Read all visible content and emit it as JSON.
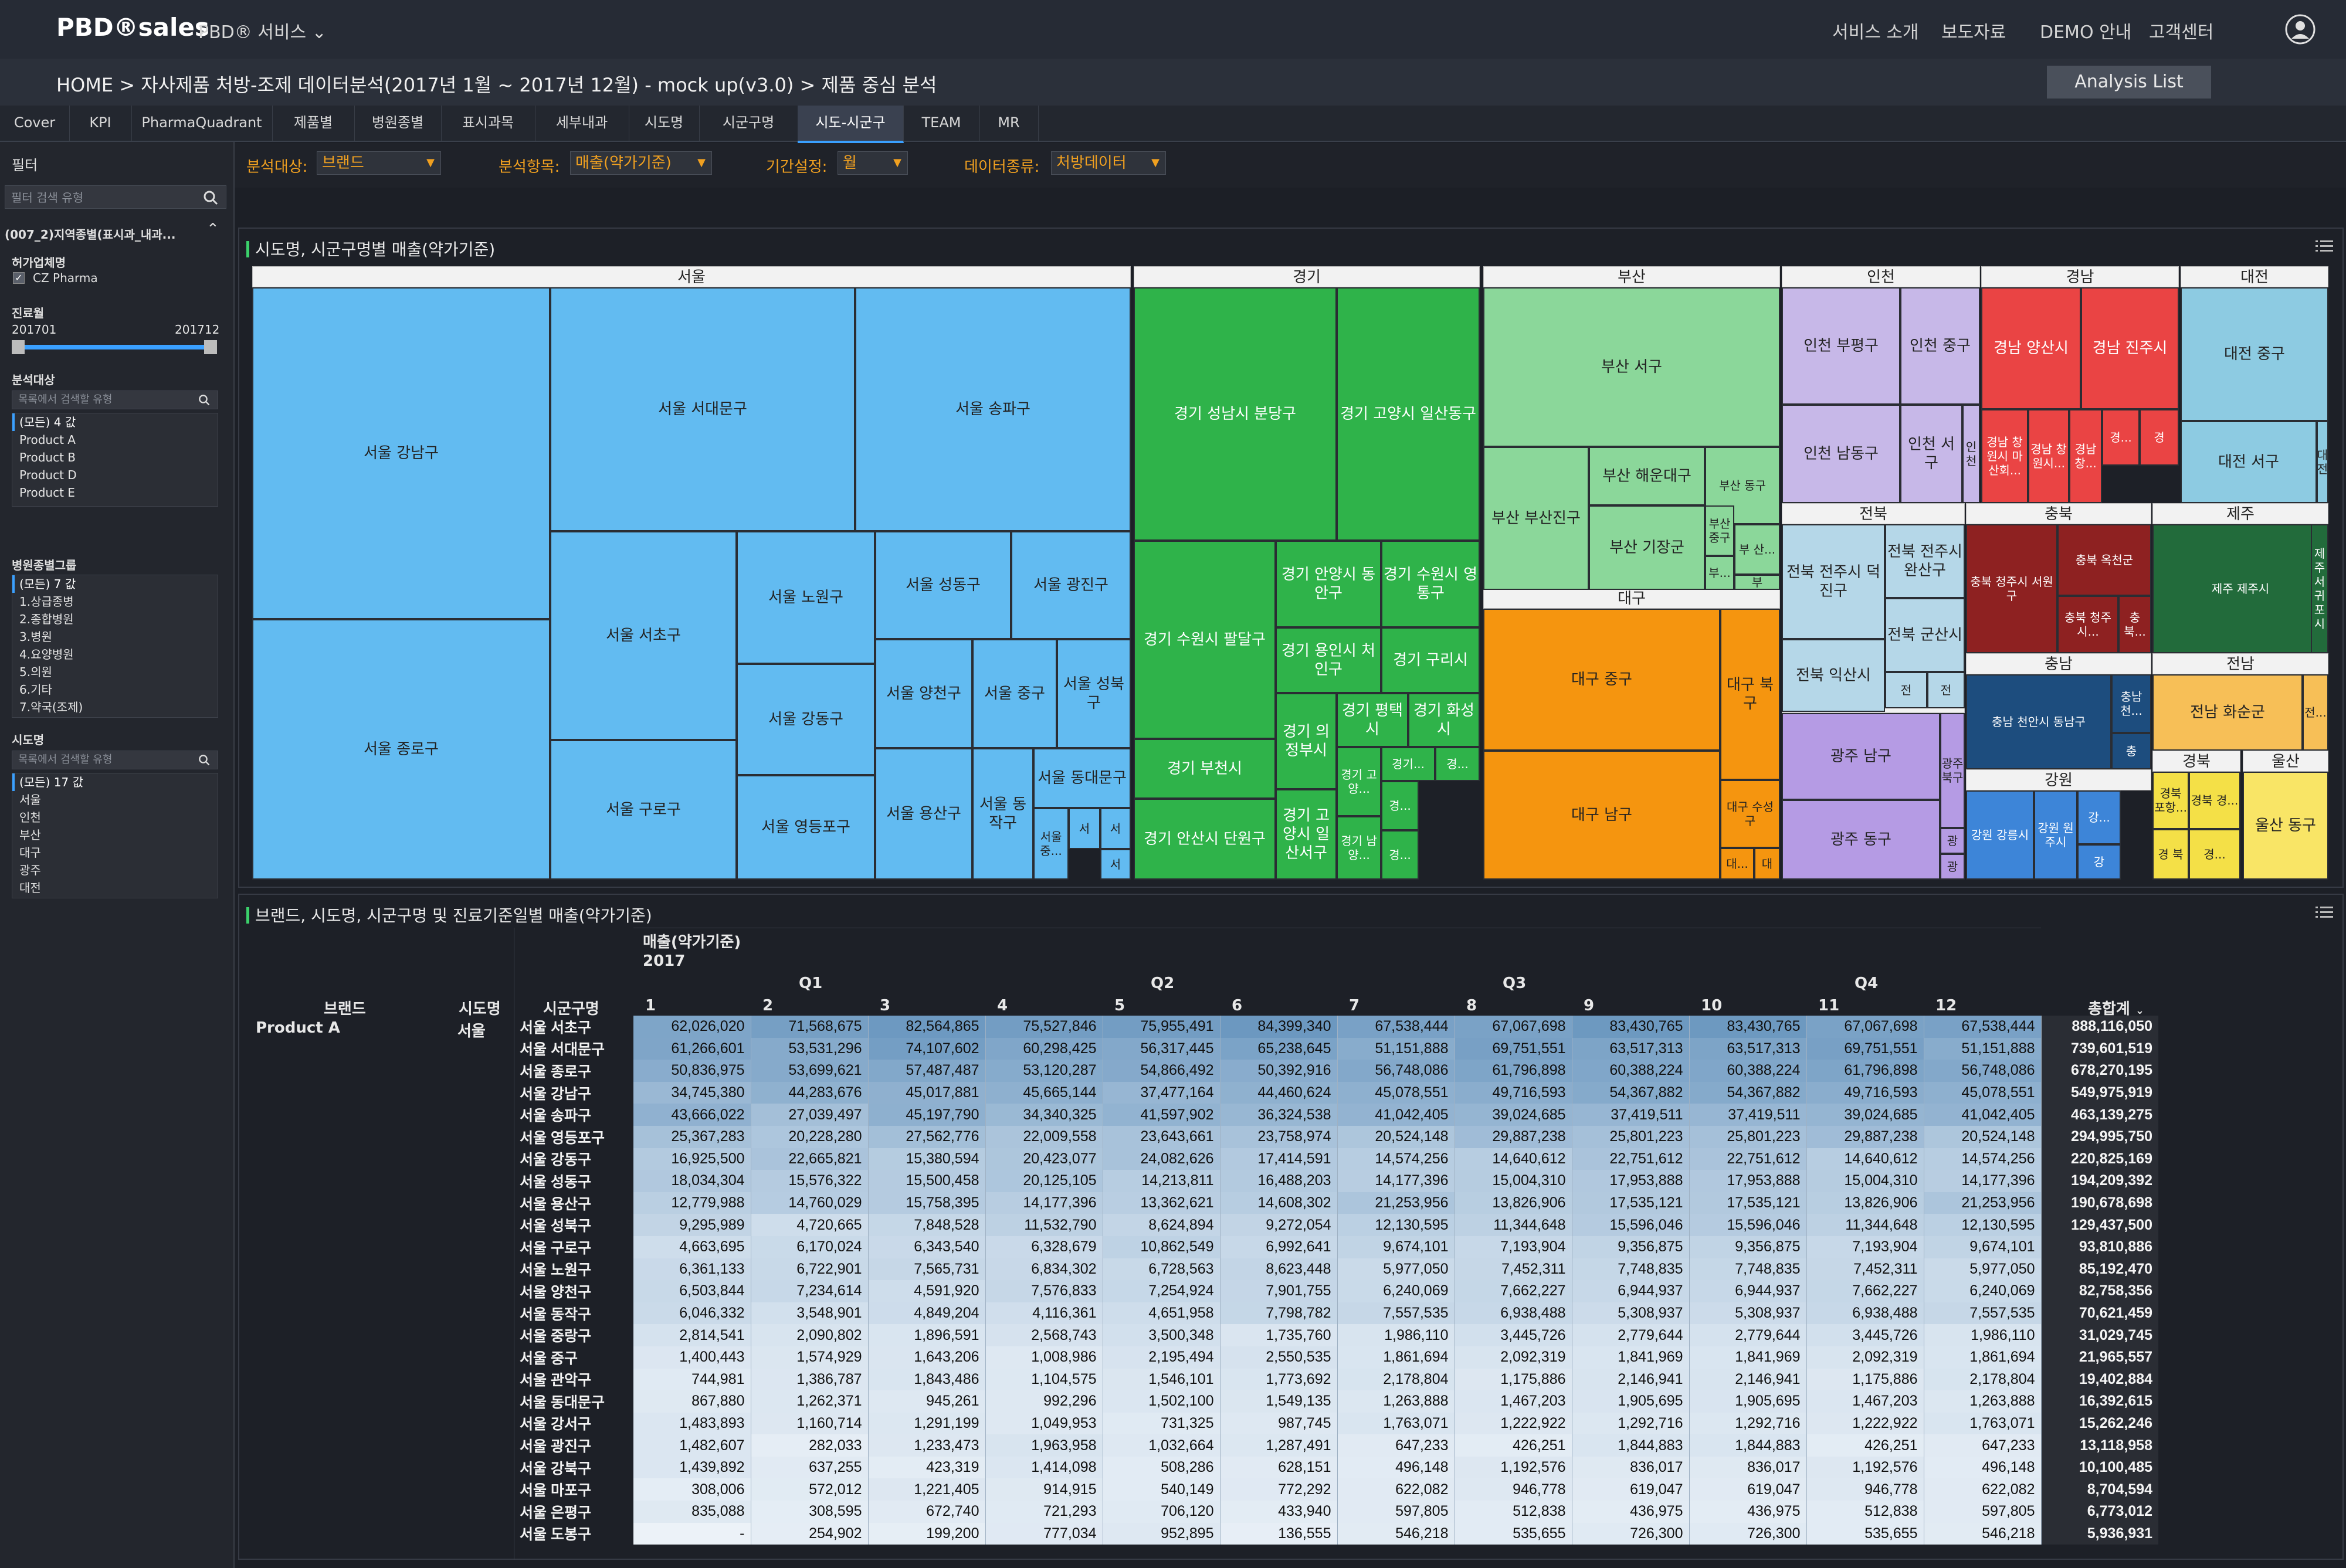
{
  "header": {
    "logo": "PBD®sales",
    "service_menu": "PBD® 서비스",
    "nav": [
      "서비스 소개",
      "보도자료",
      "DEMO 안내",
      "고객센터"
    ]
  },
  "breadcrumb": "HOME >  자사제품 처방-조제 데이터분석(2017년 1월 ~ 2017년 12월) - mock up(v3.0) > 제품 중심 분석",
  "analysis_list_label": "Analysis List",
  "tabs": [
    "Cover",
    "KPI",
    "PharmaQuadrant",
    "제품별",
    "병원종별",
    "표시과목",
    "세부내과",
    "시도명",
    "시군구명",
    "시도-시군구",
    "TEAM",
    "MR"
  ],
  "active_tab": "시도-시군구",
  "sidebar": {
    "title": "필터",
    "search_placeholder": "필터 검색 유형",
    "group_label": "(007_2)지역종별(표시과_내과...",
    "company": {
      "label": "허가업체명",
      "value": "CZ Pharma"
    },
    "period": {
      "label": "진료월",
      "start": "201701",
      "end": "201712"
    },
    "target": {
      "label": "분석대상",
      "placeholder": "목록에서 검색할 유형",
      "items": [
        "(모든) 4 값",
        "Product A",
        "Product B",
        "Product D",
        "Product E"
      ]
    },
    "hospital_group": {
      "label": "병원종별그룹",
      "items": [
        "(모든) 7 값",
        "1.상급종병",
        "2.종합병원",
        "3.병원",
        "4.요양병원",
        "5.의원",
        "6.기타",
        "7.약국(조제)"
      ]
    },
    "sido": {
      "label": "시도명",
      "placeholder": "목록에서 검색할 유형",
      "items": [
        "(모든) 17 값",
        "서울",
        "인천",
        "부산",
        "대구",
        "광주",
        "대전"
      ]
    }
  },
  "filters": [
    {
      "label": "분석대상:",
      "value": "브랜드"
    },
    {
      "label": "분석항목:",
      "value": "매출(약가기준)"
    },
    {
      "label": "기간설정:",
      "value": "월"
    },
    {
      "label": "데이터종류:",
      "value": "처방데이터"
    }
  ],
  "treemap_panel": {
    "title": "시도명, 시군구명별 매출(약가기준)",
    "groups": [
      "서울",
      "경기",
      "부산",
      "인천",
      "경남",
      "대전",
      "대구",
      "전북",
      "충북",
      "제주",
      "광주",
      "충남",
      "전남",
      "강원",
      "경북",
      "울산"
    ],
    "cells": [
      "서울 강남구",
      "서울 종로구",
      "서울 서대문구",
      "서울 송파구",
      "서울 서초구",
      "서울 구로구",
      "서울 노원구",
      "서울 성동구",
      "서울 광진구",
      "서울 강동구",
      "서울 양천구",
      "서울 중구",
      "서울 성북구",
      "서울 영등포구",
      "서울 용산구",
      "서울 동작구",
      "서울 동대문구",
      "서울 중...",
      "서",
      "서",
      "서",
      "경기 성남시 분당구",
      "경기 고양시 일산동구",
      "경기 수원시 팔달구",
      "경기 안양시 동안구",
      "경기 수원시 영통구",
      "경기 용인시 처인구",
      "경기 구리시",
      "경기 부천시",
      "경기 의정부시",
      "경기 평택시",
      "경기 화성시",
      "경기 안산시 단원구",
      "경기 고양시 일산서구",
      "경기 고양...",
      "경기...",
      "경...",
      "경기 남양...",
      "경...",
      "경...",
      "부산 서구",
      "부산 부산진구",
      "부산 해운대구",
      "부산 동구",
      "부산 중구",
      "부 산...",
      "부산 기장군",
      "부...",
      "부",
      "인천 부평구",
      "인천 중구",
      "인천 남동구",
      "인천 서구",
      "인 천",
      "경남 양산시",
      "경남 진주시",
      "경남 창원시 마산회...",
      "경남 창원시...",
      "경남 창...",
      "경...",
      "경",
      "대전 중구",
      "대전 서구",
      "대 전",
      "대구 중구",
      "대구 남구",
      "대구 북구",
      "대구 수성구",
      "대...",
      "대",
      "전북 전주시 덕진구",
      "전북 전주시 완산구",
      "전북 익산시",
      "전북 군산시",
      "전",
      "전",
      "충북 청주시 서원구",
      "충북 옥천군",
      "충북 청주시...",
      "충북...",
      "충",
      "제주 제주시",
      "제주 서귀포시",
      "광주 남구",
      "광주 동구",
      "광주 북구",
      "광",
      "광",
      "충남 천안시 동남구",
      "충남 천...",
      "충",
      "전남 화순군",
      "전...",
      "강원 강릉시",
      "강원 원주시",
      "강...",
      "강",
      "경북 포항...",
      "경북 경...",
      "경 북",
      "경...",
      "울산 동구"
    ]
  },
  "table_panel": {
    "title": "브랜드, 시도명, 시군구명 및 진료기준일별 매출(약가기준)",
    "measure": "매출(약가기준)",
    "year": "2017",
    "quarters": [
      "Q1",
      "Q2",
      "Q3",
      "Q4"
    ],
    "col_brand": "브랜드",
    "col_sido": "시도명",
    "col_sigungu": "시군구명",
    "months": [
      "1",
      "2",
      "3",
      "4",
      "5",
      "6",
      "7",
      "8",
      "9",
      "10",
      "11",
      "12"
    ],
    "total_label": "총합계",
    "brand": "Product A",
    "sido": "서울",
    "rows": [
      {
        "name": "서울 서초구",
        "values": [
          "62,026,020",
          "71,568,675",
          "82,564,865",
          "75,527,846",
          "75,955,491",
          "84,399,340",
          "67,538,444",
          "67,067,698",
          "83,430,765",
          "83,430,765",
          "67,067,698",
          "67,538,444"
        ],
        "total": "888,116,050"
      },
      {
        "name": "서울 서대문구",
        "values": [
          "61,266,601",
          "53,531,296",
          "74,107,602",
          "60,298,425",
          "56,317,445",
          "65,238,645",
          "51,151,888",
          "69,751,551",
          "63,517,313",
          "63,517,313",
          "69,751,551",
          "51,151,888"
        ],
        "total": "739,601,519"
      },
      {
        "name": "서울 종로구",
        "values": [
          "50,836,975",
          "53,699,621",
          "57,487,487",
          "53,120,287",
          "54,866,492",
          "50,392,916",
          "56,748,086",
          "61,796,898",
          "60,388,224",
          "60,388,224",
          "61,796,898",
          "56,748,086"
        ],
        "total": "678,270,195"
      },
      {
        "name": "서울 강남구",
        "values": [
          "34,745,380",
          "44,283,676",
          "45,017,881",
          "45,665,144",
          "37,477,164",
          "44,460,624",
          "45,078,551",
          "49,716,593",
          "54,367,882",
          "54,367,882",
          "49,716,593",
          "45,078,551"
        ],
        "total": "549,975,919"
      },
      {
        "name": "서울 송파구",
        "values": [
          "43,666,022",
          "27,039,497",
          "45,197,790",
          "34,340,325",
          "41,597,902",
          "36,324,538",
          "41,042,405",
          "39,024,685",
          "37,419,511",
          "37,419,511",
          "39,024,685",
          "41,042,405"
        ],
        "total": "463,139,275"
      },
      {
        "name": "서울 영등포구",
        "values": [
          "25,367,283",
          "20,228,280",
          "27,562,776",
          "22,009,558",
          "23,643,661",
          "23,758,974",
          "20,524,148",
          "29,887,238",
          "25,801,223",
          "25,801,223",
          "29,887,238",
          "20,524,148"
        ],
        "total": "294,995,750"
      },
      {
        "name": "서울 강동구",
        "values": [
          "16,925,500",
          "22,665,821",
          "15,380,594",
          "20,423,077",
          "24,082,626",
          "17,414,591",
          "14,574,256",
          "14,640,612",
          "22,751,612",
          "22,751,612",
          "14,640,612",
          "14,574,256"
        ],
        "total": "220,825,169"
      },
      {
        "name": "서울 성동구",
        "values": [
          "18,034,304",
          "15,576,322",
          "15,500,458",
          "20,125,105",
          "14,213,811",
          "16,488,203",
          "14,177,396",
          "15,004,310",
          "17,953,888",
          "17,953,888",
          "15,004,310",
          "14,177,396"
        ],
        "total": "194,209,392"
      },
      {
        "name": "서울 용산구",
        "values": [
          "12,779,988",
          "14,760,029",
          "15,758,395",
          "14,177,396",
          "13,362,621",
          "14,608,302",
          "21,253,956",
          "13,826,906",
          "17,535,121",
          "17,535,121",
          "13,826,906",
          "21,253,956"
        ],
        "total": "190,678,698"
      },
      {
        "name": "서울 성북구",
        "values": [
          "9,295,989",
          "4,720,665",
          "7,848,528",
          "11,532,790",
          "8,624,894",
          "9,272,054",
          "12,130,595",
          "11,344,648",
          "15,596,046",
          "15,596,046",
          "11,344,648",
          "12,130,595"
        ],
        "total": "129,437,500"
      },
      {
        "name": "서울 구로구",
        "values": [
          "4,663,695",
          "6,170,024",
          "6,343,540",
          "6,328,679",
          "10,862,549",
          "6,992,641",
          "9,674,101",
          "7,193,904",
          "9,356,875",
          "9,356,875",
          "7,193,904",
          "9,674,101"
        ],
        "total": "93,810,886"
      },
      {
        "name": "서울 노원구",
        "values": [
          "6,361,133",
          "6,722,901",
          "7,565,731",
          "6,834,302",
          "6,728,563",
          "8,623,448",
          "5,977,050",
          "7,452,311",
          "7,748,835",
          "7,748,835",
          "7,452,311",
          "5,977,050"
        ],
        "total": "85,192,470"
      },
      {
        "name": "서울 양천구",
        "values": [
          "6,503,844",
          "7,234,614",
          "4,591,920",
          "7,576,833",
          "7,254,924",
          "7,901,755",
          "6,240,069",
          "7,662,227",
          "6,944,937",
          "6,944,937",
          "7,662,227",
          "6,240,069"
        ],
        "total": "82,758,356"
      },
      {
        "name": "서울 동작구",
        "values": [
          "6,046,332",
          "3,548,901",
          "4,849,204",
          "4,116,361",
          "4,651,958",
          "7,798,782",
          "7,557,535",
          "6,938,488",
          "5,308,937",
          "5,308,937",
          "6,938,488",
          "7,557,535"
        ],
        "total": "70,621,459"
      },
      {
        "name": "서울 중랑구",
        "values": [
          "2,814,541",
          "2,090,802",
          "1,896,591",
          "2,568,743",
          "3,500,348",
          "1,735,760",
          "1,986,110",
          "3,445,726",
          "2,779,644",
          "2,779,644",
          "3,445,726",
          "1,986,110"
        ],
        "total": "31,029,745"
      },
      {
        "name": "서울 중구",
        "values": [
          "1,400,443",
          "1,574,929",
          "1,643,206",
          "1,008,986",
          "2,195,494",
          "2,550,535",
          "1,861,694",
          "2,092,319",
          "1,841,969",
          "1,841,969",
          "2,092,319",
          "1,861,694"
        ],
        "total": "21,965,557"
      },
      {
        "name": "서울 관악구",
        "values": [
          "744,981",
          "1,386,787",
          "1,843,486",
          "1,104,575",
          "1,546,101",
          "1,773,692",
          "2,178,804",
          "1,175,886",
          "2,146,941",
          "2,146,941",
          "1,175,886",
          "2,178,804"
        ],
        "total": "19,402,884"
      },
      {
        "name": "서울 동대문구",
        "values": [
          "867,880",
          "1,262,371",
          "945,261",
          "992,296",
          "1,502,100",
          "1,549,135",
          "1,263,888",
          "1,467,203",
          "1,905,695",
          "1,905,695",
          "1,467,203",
          "1,263,888"
        ],
        "total": "16,392,615"
      },
      {
        "name": "서울 강서구",
        "values": [
          "1,483,893",
          "1,160,714",
          "1,291,199",
          "1,049,953",
          "731,325",
          "987,745",
          "1,763,071",
          "1,222,922",
          "1,292,716",
          "1,292,716",
          "1,222,922",
          "1,763,071"
        ],
        "total": "15,262,246"
      },
      {
        "name": "서울 광진구",
        "values": [
          "1,482,607",
          "282,033",
          "1,233,473",
          "1,963,958",
          "1,032,664",
          "1,287,491",
          "647,233",
          "426,251",
          "1,844,883",
          "1,844,883",
          "426,251",
          "647,233"
        ],
        "total": "13,118,958"
      },
      {
        "name": "서울 강북구",
        "values": [
          "1,439,892",
          "637,255",
          "423,319",
          "1,414,098",
          "508,286",
          "628,151",
          "496,148",
          "1,192,576",
          "836,017",
          "836,017",
          "1,192,576",
          "496,148"
        ],
        "total": "10,100,485"
      },
      {
        "name": "서울 마포구",
        "values": [
          "308,006",
          "572,012",
          "1,221,405",
          "914,915",
          "540,149",
          "772,292",
          "622,082",
          "946,778",
          "619,047",
          "619,047",
          "946,778",
          "622,082"
        ],
        "total": "8,704,594"
      },
      {
        "name": "서울 은평구",
        "values": [
          "835,088",
          "308,595",
          "672,740",
          "721,293",
          "706,120",
          "433,940",
          "597,805",
          "512,838",
          "436,975",
          "436,975",
          "512,838",
          "597,805"
        ],
        "total": "6,773,012"
      },
      {
        "name": "서울 도봉구",
        "values": [
          "-",
          "254,902",
          "199,200",
          "777,034",
          "952,895",
          "136,555",
          "546,218",
          "535,655",
          "726,300",
          "726,300",
          "535,655",
          "546,218"
        ],
        "total": "5,936,931"
      }
    ]
  }
}
